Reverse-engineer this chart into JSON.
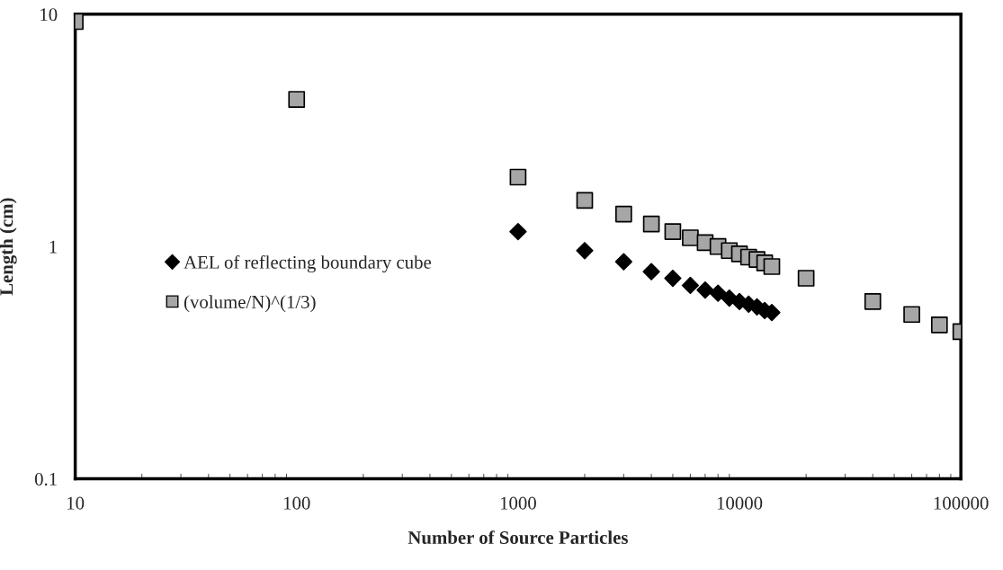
{
  "chart_data": {
    "type": "scatter",
    "xlabel": "Number of Source Particles",
    "ylabel": "Length (cm)",
    "log": "xy",
    "xlim": [
      10,
      100000
    ],
    "xticks": [
      10,
      100,
      1000,
      10000,
      100000
    ],
    "ylim": [
      0.1,
      10
    ],
    "yticks": [
      0.1,
      1,
      10
    ],
    "legend": "left",
    "grid": false,
    "series": [
      {
        "name": "AEL of reflecting boundary cube",
        "color": "#000000",
        "marker": "diamond",
        "x": [
          1000,
          2000,
          3000,
          4000,
          5000,
          6000,
          7000,
          8000,
          9000,
          10000,
          11000,
          12000,
          13000,
          14000
        ],
        "values": [
          1.16,
          0.96,
          0.86,
          0.78,
          0.73,
          0.68,
          0.65,
          0.63,
          0.6,
          0.58,
          0.565,
          0.55,
          0.53,
          0.52
        ]
      },
      {
        "name": "(volume/N)^(1/3)",
        "color": "#a6a6a6",
        "marker": "square",
        "x": [
          10,
          100,
          1000,
          2000,
          3000,
          4000,
          5000,
          6000,
          7000,
          8000,
          9000,
          10000,
          11000,
          12000,
          13000,
          14000,
          20000,
          40000,
          60000,
          80000,
          100000
        ],
        "values": [
          9.3,
          4.3,
          1.99,
          1.58,
          1.38,
          1.25,
          1.16,
          1.09,
          1.04,
          1.0,
          0.96,
          0.93,
          0.9,
          0.88,
          0.85,
          0.82,
          0.73,
          0.58,
          0.51,
          0.46,
          0.43
        ]
      }
    ]
  }
}
